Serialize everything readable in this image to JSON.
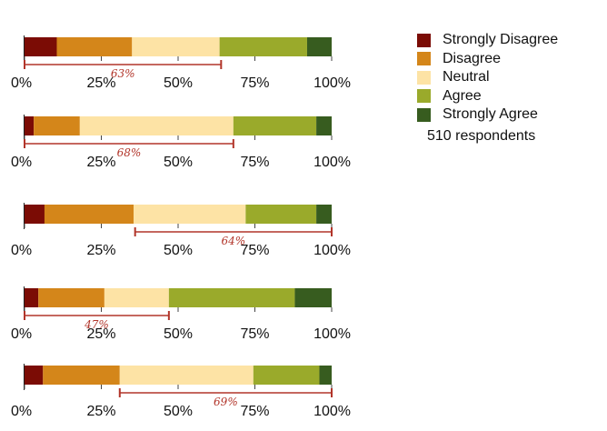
{
  "chart_data": {
    "type": "bar",
    "stacked": true,
    "orientation": "horizontal",
    "xlim": [
      0,
      100
    ],
    "x_ticks": [
      "0%",
      "25%",
      "50%",
      "75%",
      "100%"
    ],
    "legend_position": "top-right",
    "series": [
      {
        "name": "Strongly Disagree",
        "color": "#7b0c05"
      },
      {
        "name": "Disagree",
        "color": "#d4861a"
      },
      {
        "name": "Neutral",
        "color": "#fde3a5"
      },
      {
        "name": "Agree",
        "color": "#9aaa2b"
      },
      {
        "name": "Strongly Agree",
        "color": "#375c1f"
      }
    ],
    "rows": [
      {
        "values": [
          10.5,
          24.5,
          28.5,
          28.5,
          8
        ],
        "annotation": {
          "label": "63%",
          "from": 0,
          "to": 64
        }
      },
      {
        "values": [
          3,
          15,
          50,
          27,
          5
        ],
        "annotation": {
          "label": "68%",
          "from": 0,
          "to": 68
        }
      },
      {
        "values": [
          6.5,
          29,
          36.5,
          23,
          5
        ],
        "annotation": {
          "label": "64%",
          "from": 36,
          "to": 100
        }
      },
      {
        "values": [
          4.5,
          21.5,
          21,
          41,
          12
        ],
        "annotation": {
          "label": "47%",
          "from": 0,
          "to": 47
        }
      },
      {
        "values": [
          6,
          25,
          43.5,
          21.5,
          4
        ],
        "annotation": {
          "label": "69%",
          "from": 31,
          "to": 100
        }
      }
    ],
    "note": "510 respondents"
  }
}
